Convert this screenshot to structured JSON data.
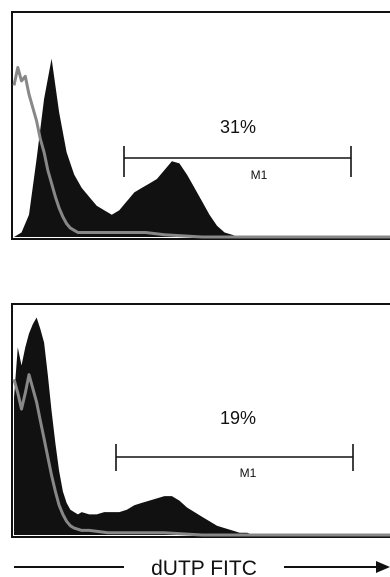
{
  "chart_data": [
    {
      "type": "area",
      "xlabel": "dUTP FITC",
      "gate": {
        "label": "M1",
        "percent": "31%",
        "range": [
          0.37,
          0.88
        ]
      },
      "series": [
        {
          "color": "#111111",
          "x": [
            0.0,
            0.02,
            0.04,
            0.06,
            0.08,
            0.1,
            0.12,
            0.14,
            0.16,
            0.18,
            0.2,
            0.22,
            0.24,
            0.26,
            0.28,
            0.3,
            0.32,
            0.34,
            0.36,
            0.38,
            0.4,
            0.42,
            0.44,
            0.46,
            0.48,
            0.5,
            0.52,
            0.54,
            0.56,
            0.58,
            0.6,
            0.62,
            0.64,
            0.66,
            0.68,
            0.7,
            0.72,
            0.74,
            0.76,
            0.78,
            0.8,
            0.82,
            0.84,
            0.86,
            0.88,
            0.9,
            0.95,
            1.0
          ],
          "y": [
            0.0,
            0.02,
            0.1,
            0.35,
            0.62,
            0.8,
            0.56,
            0.38,
            0.28,
            0.22,
            0.18,
            0.14,
            0.12,
            0.1,
            0.12,
            0.16,
            0.2,
            0.22,
            0.24,
            0.26,
            0.3,
            0.34,
            0.33,
            0.28,
            0.22,
            0.16,
            0.1,
            0.05,
            0.02,
            0.01,
            0,
            0,
            0,
            0,
            0,
            0,
            0,
            0,
            0,
            0,
            0,
            0,
            0,
            0,
            0,
            0,
            0,
            0
          ]
        },
        {
          "color": "#888888",
          "x": [
            0.0,
            0.01,
            0.02,
            0.03,
            0.04,
            0.05,
            0.06,
            0.07,
            0.08,
            0.09,
            0.1,
            0.11,
            0.12,
            0.13,
            0.14,
            0.15,
            0.16,
            0.17,
            0.18,
            0.19,
            0.2,
            0.22,
            0.24,
            0.26,
            0.28,
            0.3,
            0.35,
            0.4,
            0.5,
            0.6,
            0.7,
            0.8,
            0.9,
            1.0
          ],
          "y": [
            0.68,
            0.76,
            0.7,
            0.72,
            0.64,
            0.58,
            0.52,
            0.44,
            0.38,
            0.3,
            0.24,
            0.18,
            0.13,
            0.09,
            0.06,
            0.04,
            0.03,
            0.02,
            0.02,
            0.02,
            0.02,
            0.02,
            0.02,
            0.02,
            0.02,
            0.02,
            0.02,
            0.01,
            0,
            0,
            0,
            0,
            0,
            0
          ]
        }
      ]
    },
    {
      "type": "area",
      "xlabel": "dUTP FITC",
      "gate": {
        "label": "M1",
        "percent": "19%",
        "range": [
          0.34,
          0.89
        ]
      },
      "series": [
        {
          "color": "#111111",
          "x": [
            0.0,
            0.01,
            0.02,
            0.03,
            0.04,
            0.05,
            0.06,
            0.07,
            0.08,
            0.09,
            0.1,
            0.11,
            0.12,
            0.13,
            0.14,
            0.15,
            0.16,
            0.17,
            0.18,
            0.2,
            0.22,
            0.24,
            0.26,
            0.28,
            0.3,
            0.32,
            0.34,
            0.36,
            0.38,
            0.4,
            0.42,
            0.44,
            0.46,
            0.48,
            0.5,
            0.52,
            0.54,
            0.56,
            0.58,
            0.6,
            0.62,
            0.64,
            0.66,
            0.68,
            0.7,
            0.8,
            0.9,
            1.0
          ],
          "y": [
            0.6,
            0.82,
            0.74,
            0.82,
            0.88,
            0.92,
            0.95,
            0.9,
            0.84,
            0.7,
            0.54,
            0.4,
            0.28,
            0.19,
            0.14,
            0.11,
            0.1,
            0.09,
            0.1,
            0.09,
            0.09,
            0.1,
            0.1,
            0.1,
            0.11,
            0.13,
            0.14,
            0.15,
            0.16,
            0.17,
            0.17,
            0.15,
            0.12,
            0.1,
            0.08,
            0.06,
            0.04,
            0.03,
            0.02,
            0.01,
            0.01,
            0,
            0,
            0,
            0,
            0,
            0,
            0
          ]
        },
        {
          "color": "#888888",
          "x": [
            0.0,
            0.01,
            0.02,
            0.03,
            0.04,
            0.05,
            0.06,
            0.07,
            0.08,
            0.09,
            0.1,
            0.11,
            0.12,
            0.13,
            0.14,
            0.15,
            0.16,
            0.18,
            0.2,
            0.25,
            0.3,
            0.4,
            0.5,
            0.6,
            0.7,
            0.8,
            0.9,
            1.0
          ],
          "y": [
            0.68,
            0.62,
            0.55,
            0.62,
            0.7,
            0.64,
            0.58,
            0.5,
            0.42,
            0.34,
            0.26,
            0.19,
            0.13,
            0.09,
            0.06,
            0.04,
            0.03,
            0.02,
            0.02,
            0.01,
            0.01,
            0.01,
            0,
            0,
            0,
            0,
            0,
            0
          ]
        }
      ]
    }
  ]
}
